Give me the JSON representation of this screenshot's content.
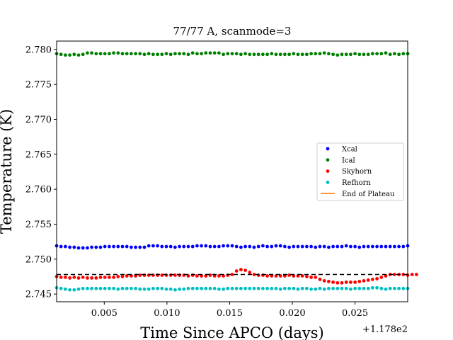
{
  "figure": {
    "title": "77/77 A, scanmode=3",
    "xlabel": "Time Since APCO (days)",
    "ylabel": "Temperature (K)",
    "x_offset_label": "+1.178e2"
  },
  "chart_data": {
    "type": "scatter",
    "title": "77/77 A, scanmode=3",
    "xlabel": "Time Since APCO (days)",
    "ylabel": "Temperature (K)",
    "x_offset": 117.8,
    "x_offset_label": "+1.178e2",
    "xlim": [
      117.8012,
      117.8292
    ],
    "ylim": [
      2.7439,
      2.7812
    ],
    "xticks": [
      0.005,
      0.01,
      0.015,
      0.02,
      0.025
    ],
    "xtick_labels": [
      "0.005",
      "0.010",
      "0.015",
      "0.020",
      "0.025"
    ],
    "yticks": [
      2.745,
      2.75,
      2.755,
      2.76,
      2.765,
      2.77,
      2.775,
      2.78
    ],
    "ytick_labels": [
      "2.745",
      "2.750",
      "2.755",
      "2.760",
      "2.765",
      "2.770",
      "2.775",
      "2.780"
    ],
    "grid": false,
    "legend_position": "center-right",
    "series": [
      {
        "name": "Xcal",
        "color": "#0000ff",
        "x_start": 117.8012,
        "x_step": 0.00035,
        "values": [
          2.7519,
          2.7518,
          2.7518,
          2.7517,
          2.7517,
          2.7516,
          2.7516,
          2.7516,
          2.7517,
          2.7517,
          2.7517,
          2.7518,
          2.7518,
          2.7518,
          2.7518,
          2.7518,
          2.7518,
          2.7517,
          2.7517,
          2.7517,
          2.7517,
          2.7519,
          2.7519,
          2.7519,
          2.7518,
          2.7518,
          2.7518,
          2.7517,
          2.7518,
          2.7518,
          2.7518,
          2.7518,
          2.7519,
          2.7519,
          2.7519,
          2.7518,
          2.7518,
          2.7518,
          2.7519,
          2.7519,
          2.7519,
          2.7518,
          2.7517,
          2.7518,
          2.7518,
          2.7517,
          2.7518,
          2.7519,
          2.7518,
          2.7518,
          2.7519,
          2.7519,
          2.7518,
          2.7517,
          2.7518,
          2.7518,
          2.7518,
          2.7518,
          2.7518,
          2.7517,
          2.7518,
          2.7518,
          2.7517,
          2.7518,
          2.7518,
          2.7518,
          2.7519,
          2.7518,
          2.7518,
          2.7517,
          2.7518,
          2.7518,
          2.7518,
          2.7518,
          2.7518,
          2.7518,
          2.7518,
          2.7518,
          2.7518,
          2.7518,
          2.7519
        ]
      },
      {
        "name": "Ical",
        "color": "#008000",
        "x_start": 117.8012,
        "x_step": 0.00035,
        "values": [
          2.7794,
          2.7793,
          2.7792,
          2.7792,
          2.7793,
          2.7792,
          2.7793,
          2.7795,
          2.7795,
          2.7794,
          2.7794,
          2.7794,
          2.7794,
          2.7795,
          2.7795,
          2.7794,
          2.7794,
          2.7794,
          2.7794,
          2.7794,
          2.7793,
          2.7794,
          2.7793,
          2.7793,
          2.7793,
          2.7794,
          2.7793,
          2.7794,
          2.7794,
          2.7794,
          2.7793,
          2.7795,
          2.7794,
          2.7794,
          2.7795,
          2.7795,
          2.7795,
          2.7795,
          2.7793,
          2.7794,
          2.7794,
          2.7794,
          2.7793,
          2.7794,
          2.7793,
          2.7793,
          2.7793,
          2.7793,
          2.7793,
          2.7794,
          2.7793,
          2.7793,
          2.7793,
          2.7793,
          2.7794,
          2.7793,
          2.7793,
          2.7793,
          2.7794,
          2.7794,
          2.7794,
          2.7795,
          2.7794,
          2.7793,
          2.7792,
          2.7793,
          2.7793,
          2.7793,
          2.7794,
          2.7793,
          2.7793,
          2.7793,
          2.7794,
          2.7794,
          2.7794,
          2.7795,
          2.7793,
          2.7794,
          2.7793,
          2.7794,
          2.7794
        ]
      },
      {
        "name": "Skyhorn",
        "color": "#ff0000",
        "x_start": 117.8012,
        "x_step": 0.00035,
        "values": [
          2.7475,
          2.7474,
          2.7474,
          2.7473,
          2.7474,
          2.7473,
          2.7474,
          2.7473,
          2.7473,
          2.7473,
          2.7474,
          2.7474,
          2.7474,
          2.7474,
          2.7475,
          2.7475,
          2.7476,
          2.7476,
          2.7476,
          2.7477,
          2.7477,
          2.7477,
          2.7477,
          2.7477,
          2.7477,
          2.7477,
          2.7477,
          2.7477,
          2.7477,
          2.7477,
          2.7476,
          2.7477,
          2.7476,
          2.7476,
          2.7476,
          2.7477,
          2.7476,
          2.7476,
          2.7476,
          2.7477,
          2.7478,
          2.7483,
          2.7485,
          2.7484,
          2.7481,
          2.7478,
          2.7477,
          2.7477,
          2.7476,
          2.7476,
          2.7476,
          2.7476,
          2.7476,
          2.7477,
          2.7476,
          2.7476,
          2.7476,
          2.7475,
          2.7474,
          2.7474,
          2.7471,
          2.7469,
          2.7468,
          2.7467,
          2.7466,
          2.7466,
          2.7467,
          2.7467,
          2.7467,
          2.7468,
          2.7469,
          2.747,
          2.7471,
          2.7472,
          2.7474,
          2.7476,
          2.7478,
          2.7478,
          2.7478,
          2.7478,
          2.7477,
          2.7478,
          2.7478
        ]
      },
      {
        "name": "Refhorn",
        "color": "#00bfbf",
        "x_start": 117.8012,
        "x_step": 0.00035,
        "values": [
          2.7459,
          2.7458,
          2.7457,
          2.7456,
          2.7456,
          2.7457,
          2.7458,
          2.7458,
          2.7458,
          2.7458,
          2.7458,
          2.7458,
          2.7458,
          2.7458,
          2.7457,
          2.7458,
          2.7458,
          2.7458,
          2.7458,
          2.7457,
          2.7457,
          2.7457,
          2.7458,
          2.7458,
          2.7458,
          2.7457,
          2.7457,
          2.7456,
          2.7457,
          2.7457,
          2.7458,
          2.7458,
          2.7458,
          2.7458,
          2.7458,
          2.7458,
          2.7458,
          2.7457,
          2.7457,
          2.7458,
          2.7458,
          2.7458,
          2.7458,
          2.7458,
          2.7458,
          2.7458,
          2.7458,
          2.7458,
          2.7458,
          2.7458,
          2.7458,
          2.7457,
          2.7458,
          2.7458,
          2.7458,
          2.7457,
          2.7458,
          2.7458,
          2.7457,
          2.7457,
          2.7458,
          2.7457,
          2.7458,
          2.7458,
          2.7458,
          2.7458,
          2.7458,
          2.7457,
          2.7458,
          2.7458,
          2.7458,
          2.7458,
          2.7459,
          2.7459,
          2.7458,
          2.7457,
          2.7458,
          2.7458,
          2.7458,
          2.7458,
          2.7458
        ]
      }
    ],
    "lines": [
      {
        "name": "End of Plateau",
        "color": "#ff7f0e",
        "style": "solid",
        "in_legend": true
      },
      {
        "name": "",
        "color": "#000000",
        "style": "dashed",
        "y": 2.7478,
        "in_legend": false
      }
    ],
    "legend": [
      "Xcal",
      "Ical",
      "Skyhorn",
      "Refhorn",
      "End of Plateau"
    ]
  }
}
